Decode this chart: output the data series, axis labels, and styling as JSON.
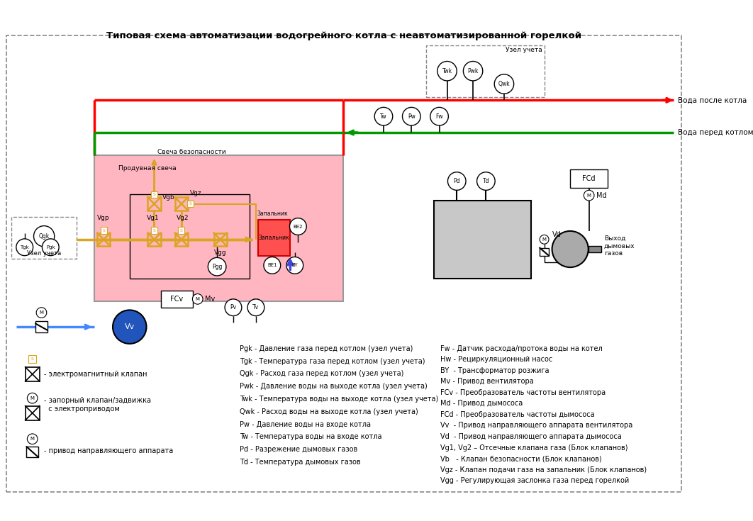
{
  "title": "Типовая схема автоматизации водогрейного котла с неавтоматизированной горелкой",
  "legend_right_col1": [
    "Pgk - Давление газа перед котлом (узел учета)",
    "Tgk - Температура газа перед котлом (узел учета)",
    "Qgk - Расход газа перед котлом (узел учета)",
    "Pwk - Давление воды на выходе котла (узел учета)",
    "Twk - Температура воды на выходе котла (узел учета)",
    "Qwk - Расход воды на выходе котла (узел учета)",
    "Pw - Давление воды на входе котла",
    "Tw - Температура воды на входе котла",
    "Pd - Разрежение дымовых газов",
    "Td - Температура дымовых газов"
  ],
  "legend_right_col2": [
    "Fw - Датчик расхода/протока воды на котел",
    "Hw - Рециркуляционный насос",
    "BY  - Трансформатор розжига",
    "Mv - Привод вентилятора",
    "FCv - Преобразователь частоты вентилятора",
    "Md - Привод дымососа",
    "FCd - Преобразователь частоты дымососа",
    "Vv  - Привод направляющего аппарата вентилятора",
    "Vd  - Привод направляющего аппарата дымососа",
    "Vg1, Vg2 – Отсечные клапана газа (Блок клапанов)",
    "Vb   - Клапан безопасности (Блок клапанов)",
    "Vgz - Клапан подачи газа на запальник (Блок клапанов)",
    "Vgg - Регулирующая заслонка газа перед горелкой"
  ]
}
